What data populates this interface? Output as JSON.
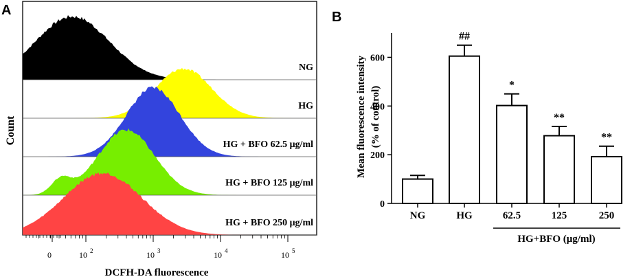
{
  "panels": {
    "a": {
      "letter": "A",
      "y_label": "Count",
      "x_label": "DCFH-DA fluorescence",
      "x_ticks": [
        {
          "base": "0",
          "exp": ""
        },
        {
          "base": "10",
          "exp": "2"
        },
        {
          "base": "10",
          "exp": "3"
        },
        {
          "base": "10",
          "exp": "4"
        },
        {
          "base": "10",
          "exp": "5"
        }
      ],
      "histograms": [
        {
          "label": "NG",
          "color": "#000000",
          "peak_log": 1.8
        },
        {
          "label": "HG",
          "color": "#ffff00",
          "peak_log": 3.45
        },
        {
          "label": "HG + BFO 62.5 μg/ml",
          "color": "#3344dd",
          "peak_log": 3.0
        },
        {
          "label": "HG + BFO 125 μg/ml",
          "color": "#77ee00",
          "peak_log": 2.6
        },
        {
          "label": "HG + BFO 250 μg/ml",
          "color": "#ff4444",
          "peak_log": 2.25
        }
      ]
    },
    "b": {
      "letter": "B",
      "group_label": "HG+BFO (μg/ml)"
    }
  },
  "chart_data": {
    "type": "bar",
    "ylabel": "Mean fluorescence intensity (% of control)",
    "ylabel_line1": "Mean fluorescence intensity",
    "ylabel_line2": "(% of control)",
    "ylim": [
      0,
      700
    ],
    "y_ticks": [
      "0",
      "200",
      "400",
      "600"
    ],
    "categories": [
      "NG",
      "HG",
      "62.5",
      "125",
      "250"
    ],
    "values": [
      100,
      605,
      402,
      278,
      192
    ],
    "errors": [
      15,
      45,
      48,
      38,
      43
    ],
    "annotations": [
      "",
      "##",
      "*",
      "**",
      "**"
    ],
    "xlabel": "HG+BFO (μg/ml)"
  }
}
